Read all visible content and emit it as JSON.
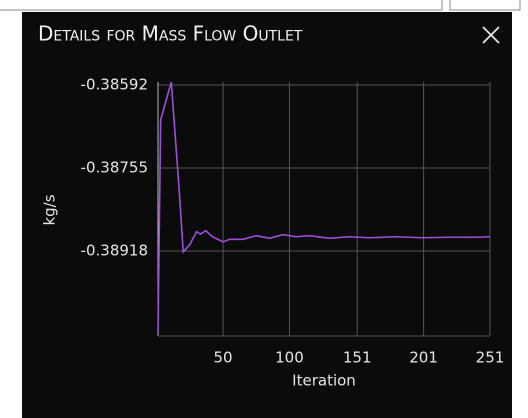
{
  "panel_title": "Details for Mass Flow Outlet",
  "chart_data": {
    "type": "line",
    "xlabel": "Iteration",
    "ylabel": "kg/s",
    "x": [
      1,
      3,
      11,
      17,
      20,
      25,
      30,
      33,
      37,
      42,
      50,
      55,
      65,
      75,
      85,
      95,
      105,
      115,
      130,
      145,
      160,
      180,
      200,
      220,
      240,
      251
    ],
    "series": [
      {
        "color": "#9b50d6",
        "values": [
          -0.3908,
          -0.3866,
          -0.38586,
          -0.388,
          -0.3892,
          -0.38905,
          -0.3888,
          -0.38885,
          -0.38878,
          -0.3889,
          -0.389,
          -0.38895,
          -0.38895,
          -0.38888,
          -0.38893,
          -0.38886,
          -0.3889,
          -0.38888,
          -0.38893,
          -0.3889,
          -0.38892,
          -0.3889,
          -0.38892,
          -0.38891,
          -0.38891,
          -0.3889
        ]
      }
    ],
    "xlim": [
      1,
      251
    ],
    "xticks": [
      50,
      100,
      151,
      201,
      251
    ],
    "ylim": [
      -0.39085,
      -0.38586
    ],
    "yticks": [
      -0.38592,
      -0.38755,
      -0.38918
    ],
    "grid": true
  }
}
